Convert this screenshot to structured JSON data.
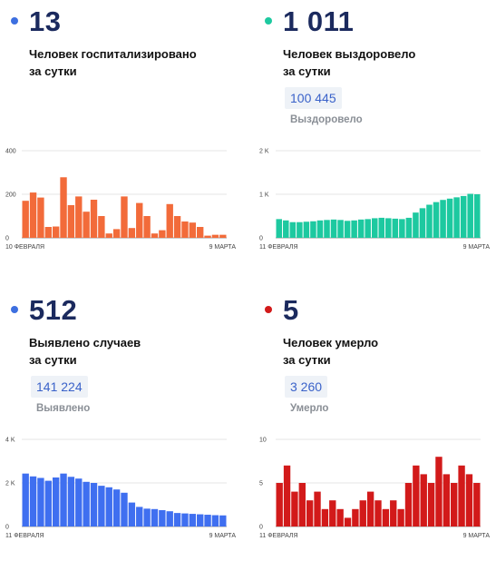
{
  "panels": [
    {
      "id": "hosp",
      "number": "13",
      "desc1": "Человек госпитализировано",
      "desc2": "за сутки",
      "color": "#f26b3a",
      "dot_color": "#3d6fe0",
      "chart_data": {
        "type": "bar",
        "ylim": [
          0,
          400
        ],
        "yticks": [
          "400",
          "200",
          "0"
        ],
        "ytick_values": [
          400,
          200,
          0
        ],
        "xstart": "10 ФЕВРАЛЯ",
        "xend": "9 МАРТА",
        "values": [
          170,
          208,
          185,
          50,
          52,
          278,
          150,
          190,
          120,
          175,
          100,
          20,
          40,
          190,
          45,
          160,
          100,
          20,
          35,
          155,
          100,
          75,
          70,
          50,
          10,
          14,
          14
        ]
      }
    },
    {
      "id": "rec",
      "number": "1 011",
      "desc1": "Человек выздоровело",
      "desc2": "за сутки",
      "total": "100 445",
      "total_label": "Выздоровело",
      "color": "#1dc9a0",
      "dot_color": "#1dc9a0",
      "chart_data": {
        "type": "bar",
        "ylim": [
          0,
          2000
        ],
        "yticks": [
          "2 K",
          "1 K",
          "0"
        ],
        "ytick_values": [
          2000,
          1000,
          0
        ],
        "xstart": "11 ФЕВРАЛЯ",
        "xend": "9 МАРТА",
        "values": [
          430,
          400,
          360,
          360,
          370,
          380,
          400,
          410,
          420,
          410,
          390,
          400,
          420,
          430,
          450,
          460,
          450,
          440,
          430,
          460,
          580,
          680,
          760,
          820,
          870,
          900,
          930,
          960,
          1010,
          1000
        ]
      }
    },
    {
      "id": "cases",
      "number": "512",
      "desc1": "Выявлено случаев",
      "desc2": "за сутки",
      "total": "141 224",
      "total_label": "Выявлено",
      "color": "#3f6ff0",
      "dot_color": "#3d6fe0",
      "chart_data": {
        "type": "bar",
        "ylim": [
          0,
          4000
        ],
        "yticks": [
          "4 K",
          "2 K",
          "0"
        ],
        "ytick_values": [
          4000,
          2000,
          0
        ],
        "xstart": "11 ФЕВРАЛЯ",
        "xend": "9 МАРТА",
        "values": [
          2430,
          2300,
          2230,
          2100,
          2250,
          2430,
          2280,
          2200,
          2050,
          2000,
          1870,
          1800,
          1700,
          1550,
          1100,
          900,
          820,
          800,
          750,
          700,
          620,
          600,
          580,
          560,
          540,
          520,
          510
        ]
      }
    },
    {
      "id": "dead",
      "number": "5",
      "desc1": "Человек умерло",
      "desc2": "за сутки",
      "total": "3 260",
      "total_label": "Умерло",
      "color": "#d21a1a",
      "dot_color": "#d21a1a",
      "chart_data": {
        "type": "bar",
        "ylim": [
          0,
          10
        ],
        "yticks": [
          "10",
          "5",
          "0"
        ],
        "ytick_values": [
          10,
          5,
          0
        ],
        "xstart": "11 ФЕВРАЛЯ",
        "xend": "9 МАРТА",
        "values": [
          5,
          7,
          4,
          5,
          3,
          4,
          2,
          3,
          2,
          1,
          2,
          3,
          4,
          3,
          2,
          3,
          2,
          5,
          7,
          6,
          5,
          8,
          6,
          5,
          7,
          6,
          5
        ]
      }
    }
  ]
}
